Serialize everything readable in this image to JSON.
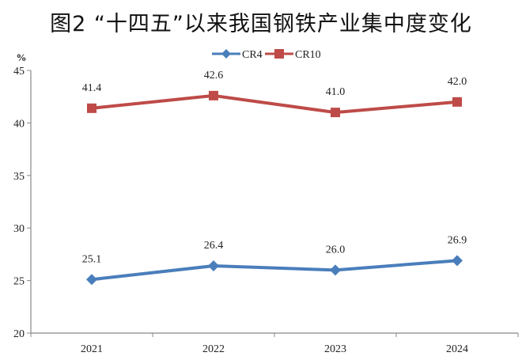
{
  "chart_data": {
    "type": "line",
    "title": "图2 “十四五”以来我国钢铁产业集中度变化",
    "ylabel": "%",
    "categories": [
      "2021",
      "2022",
      "2023",
      "2024"
    ],
    "ylim": [
      20,
      45
    ],
    "yticks": [
      20,
      25,
      30,
      35,
      40,
      45
    ],
    "legend_position": "top-center",
    "grid": false,
    "series": [
      {
        "name": "CR4",
        "values": [
          25.1,
          26.4,
          26.0,
          26.9
        ],
        "labels": [
          "25.1",
          "26.4",
          "26.0",
          "26.9"
        ],
        "color": "#4a7ebb",
        "marker": "diamond"
      },
      {
        "name": "CR10",
        "values": [
          41.4,
          42.6,
          41.0,
          42.0
        ],
        "labels": [
          "41.4",
          "42.6",
          "41.0",
          "42.0"
        ],
        "color": "#be4b48",
        "marker": "square"
      }
    ]
  }
}
